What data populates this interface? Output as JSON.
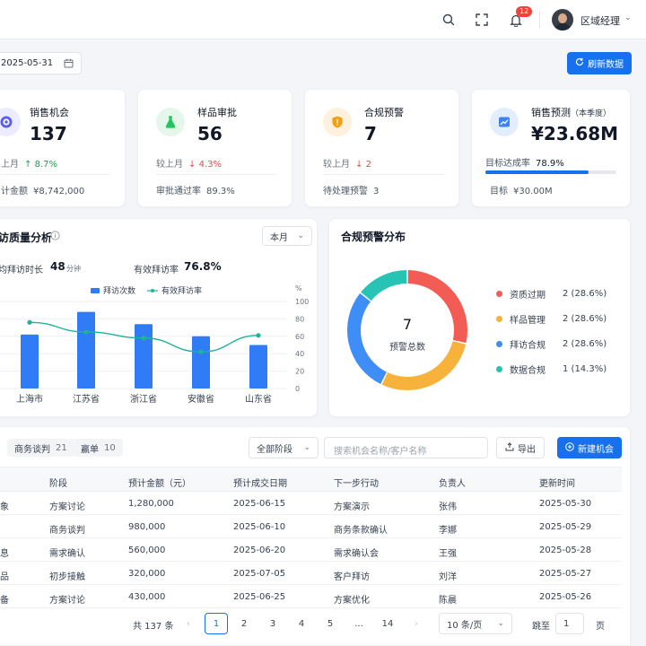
{
  "topbar": {
    "notification_count": "12",
    "user_name": "区域经理"
  },
  "toolbar": {
    "date": "2025-05-31",
    "refresh_label": "刷新数据"
  },
  "kpis": [
    {
      "title": "销售机会",
      "value": "137",
      "compare_label": "上月",
      "compare_value": "8.7%",
      "trend": "up",
      "foot_label": "计金额",
      "foot_value": "¥8,742,000",
      "icon": "target-icon",
      "color": "#5b5ef0"
    },
    {
      "title": "样品审批",
      "value": "56",
      "compare_label": "较上月",
      "compare_value": "4.3%",
      "trend": "down",
      "foot_label": "审批通过率",
      "foot_value": "89.3%",
      "icon": "flask-icon",
      "color": "#22c55e"
    },
    {
      "title": "合规预警",
      "value": "7",
      "compare_label": "较上月",
      "compare_value": "2",
      "trend": "down",
      "foot_label": "待处理预警",
      "foot_value": "3",
      "icon": "shield-alert-icon",
      "color": "#f59e0b"
    },
    {
      "title": "销售预测",
      "title_sub": "（本季度）",
      "value": "¥23.68M",
      "target_rate_label": "目标达成率",
      "target_rate_value": "78.9%",
      "target_progress": 0.789,
      "foot_label": "目标",
      "foot_value": "¥30.00M",
      "icon": "trend-chart-icon",
      "color": "#3b82f6"
    }
  ],
  "visit": {
    "title": "访质量分析",
    "period": "本月",
    "avg_duration_label": "均拜访时长",
    "avg_duration_value": "48",
    "avg_duration_unit": "分钟",
    "effective_rate_label": "有效拜访率",
    "effective_rate_value": "76.8%"
  },
  "compliance": {
    "title": "合规预警分布",
    "center_value": "7",
    "center_label": "预警总数"
  },
  "chart_data": [
    {
      "type": "bar",
      "categories": [
        "上海市",
        "江苏省",
        "浙江省",
        "安徽省",
        "山东省"
      ],
      "series": [
        {
          "name": "拜访次数",
          "type": "bar",
          "color": "#2f7cf6",
          "values": [
            62,
            88,
            74,
            60,
            50
          ]
        },
        {
          "name": "有效拜访率",
          "type": "line",
          "color": "#1fb39a",
          "values": [
            76,
            65,
            58,
            42,
            61
          ]
        }
      ],
      "y2_label": "%",
      "y2_ticks": [
        "100",
        "80",
        "60",
        "40",
        "20",
        "0"
      ],
      "ylim": [
        0,
        100
      ]
    },
    {
      "type": "pie",
      "labels": [
        "资质过期",
        "样品管理",
        "拜访合规",
        "数据合规"
      ],
      "values": [
        2,
        2,
        2,
        1
      ],
      "display": [
        "2 (28.6%)",
        "2 (28.6%)",
        "2 (28.6%)",
        "1 (14.3%)"
      ],
      "colors": [
        "#f25c54",
        "#f7b23b",
        "#3f8ef7",
        "#27c4b5"
      ]
    }
  ],
  "table": {
    "chips": [
      {
        "label": "商务谈判",
        "count": "21"
      },
      {
        "label": "赢单",
        "count": "10"
      }
    ],
    "stage_filter": "全部阶段",
    "search_placeholder": "搜索机会名称/客户名称",
    "export_label": "导出",
    "new_label": "新建机会",
    "headers": [
      "阶段",
      "预计金额（元）",
      "预计成交日期",
      "下一步行动",
      "负责人",
      "更新时间"
    ],
    "rows": [
      {
        "name": "象",
        "stage": "方案讨论",
        "amount": "1,280,000",
        "date": "2025-06-15",
        "action": "方案演示",
        "owner": "张伟",
        "updated": "2025-05-30"
      },
      {
        "name": "",
        "stage": "商务谈判",
        "amount": "980,000",
        "date": "2025-06-10",
        "action": "商务条款确认",
        "owner": "李娜",
        "updated": "2025-05-29"
      },
      {
        "name": "息",
        "stage": "需求确认",
        "amount": "560,000",
        "date": "2025-06-20",
        "action": "需求确认会",
        "owner": "王强",
        "updated": "2025-05-28"
      },
      {
        "name": "品",
        "stage": "初步接触",
        "amount": "320,000",
        "date": "2025-07-05",
        "action": "客户拜访",
        "owner": "刘洋",
        "updated": "2025-05-27"
      },
      {
        "name": "备",
        "stage": "方案讨论",
        "amount": "430,000",
        "date": "2025-06-25",
        "action": "方案优化",
        "owner": "陈晨",
        "updated": "2025-05-26"
      }
    ]
  },
  "pagination": {
    "total": "共 137 条",
    "pages": [
      "1",
      "2",
      "3",
      "4",
      "5",
      "...",
      "14"
    ],
    "current": "1",
    "page_size": "10 条/页",
    "goto_label": "跳至",
    "goto_value": "1",
    "goto_suffix": "页"
  }
}
